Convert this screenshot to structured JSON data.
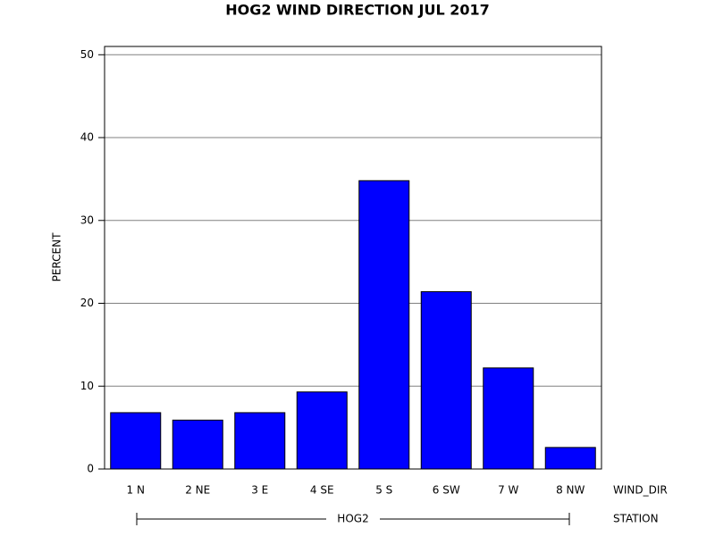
{
  "chart_data": {
    "type": "bar",
    "title": "HOG2 WIND DIRECTION JUL 2017",
    "ylabel": "PERCENT",
    "xlabel": "WIND_DIR",
    "group": "HOG2",
    "group_label": "STATION",
    "categories": [
      "1 N",
      "2 NE",
      "3 E",
      "4 SE",
      "5 S",
      "6 SW",
      "7 W",
      "8 NW"
    ],
    "values": [
      6.8,
      5.9,
      6.8,
      9.3,
      34.8,
      21.4,
      12.2,
      2.6
    ],
    "color": "#0000ff",
    "ylim": [
      0,
      51
    ],
    "yticks": [
      0,
      10,
      20,
      30,
      40,
      50
    ],
    "grid": true
  }
}
